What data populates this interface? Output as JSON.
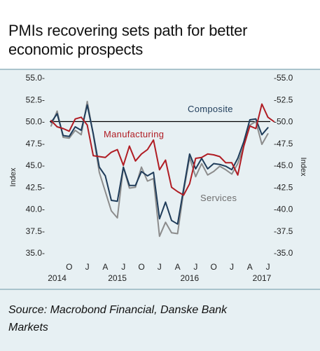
{
  "title_line1": "PMIs recovering sets path for better",
  "title_line2": "economic prospects",
  "source_line1": "Source: Macrobond Financial, Danske Bank",
  "source_line2": "Markets",
  "chart_data": {
    "type": "line",
    "title": "PMIs recovering sets path for better economic prospects",
    "ylabel_left": "Index",
    "ylabel_right": "Index",
    "ylim": [
      35.0,
      55.0
    ],
    "yticks_left": [
      "55.0",
      "52.5",
      "50.0",
      "47.5",
      "45.0",
      "42.5",
      "40.0",
      "37.5",
      "35.0"
    ],
    "yticks_right": [
      "55.0",
      "52.5",
      "50.0",
      "47.5",
      "45.0",
      "42.5",
      "40.0",
      "37.5",
      "35.0"
    ],
    "ytick_values": [
      55.0,
      52.5,
      50.0,
      47.5,
      45.0,
      42.5,
      40.0,
      37.5,
      35.0
    ],
    "reference_line": 50.0,
    "x_month_labels": [
      {
        "label": "O",
        "index": 3
      },
      {
        "label": "J",
        "index": 6
      },
      {
        "label": "A",
        "index": 9
      },
      {
        "label": "J",
        "index": 12
      },
      {
        "label": "O",
        "index": 15
      },
      {
        "label": "J",
        "index": 18
      },
      {
        "label": "A",
        "index": 21
      },
      {
        "label": "J",
        "index": 24
      },
      {
        "label": "O",
        "index": 27
      },
      {
        "label": "J",
        "index": 30
      },
      {
        "label": "A",
        "index": 33
      },
      {
        "label": "J",
        "index": 36
      }
    ],
    "x_year_labels": [
      {
        "label": "2014",
        "index": 1
      },
      {
        "label": "2015",
        "index": 11
      },
      {
        "label": "2016",
        "index": 23
      },
      {
        "label": "2017",
        "index": 35
      }
    ],
    "series": [
      {
        "name": "Services",
        "color": "#8c8c8c",
        "values": [
          49.5,
          51.2,
          48.2,
          48.1,
          49.0,
          48.5,
          52.3,
          48.5,
          44.2,
          42.0,
          39.8,
          39.0,
          44.8,
          42.4,
          42.5,
          44.8,
          43.2,
          43.5,
          36.9,
          38.5,
          37.3,
          37.2,
          42.0,
          45.9,
          43.7,
          45.2,
          43.9,
          44.3,
          44.9,
          44.5,
          44.0,
          45.2,
          47.2,
          49.6,
          50.0,
          47.4,
          48.6
        ]
      },
      {
        "name": "Composite",
        "color": "#1f3c5a",
        "values": [
          49.9,
          50.9,
          48.4,
          48.3,
          49.4,
          49.0,
          51.9,
          48.6,
          44.8,
          43.8,
          41.0,
          40.9,
          44.8,
          42.7,
          42.7,
          44.3,
          43.8,
          44.2,
          38.9,
          40.8,
          38.7,
          38.3,
          42.3,
          46.3,
          44.6,
          45.8,
          44.6,
          45.2,
          45.1,
          44.9,
          44.5,
          45.8,
          47.7,
          50.2,
          50.3,
          48.5,
          49.3
        ]
      },
      {
        "name": "Manufacturing",
        "color": "#b01c23",
        "values": [
          50.1,
          49.4,
          49.2,
          48.9,
          50.3,
          50.5,
          49.6,
          46.1,
          46.0,
          45.9,
          46.5,
          46.8,
          45.0,
          47.2,
          45.5,
          46.3,
          46.8,
          47.9,
          44.5,
          45.6,
          42.5,
          42.0,
          41.6,
          42.9,
          45.8,
          45.9,
          46.3,
          46.2,
          46.0,
          45.3,
          45.3,
          43.9,
          47.2,
          49.5,
          49.2,
          52.0,
          50.5,
          50.0
        ]
      }
    ],
    "annotations": [
      {
        "text": "Composite",
        "series": "Composite"
      },
      {
        "text": "Manufacturing",
        "series": "Manufacturing"
      },
      {
        "text": "Services",
        "series": "Services"
      }
    ]
  }
}
